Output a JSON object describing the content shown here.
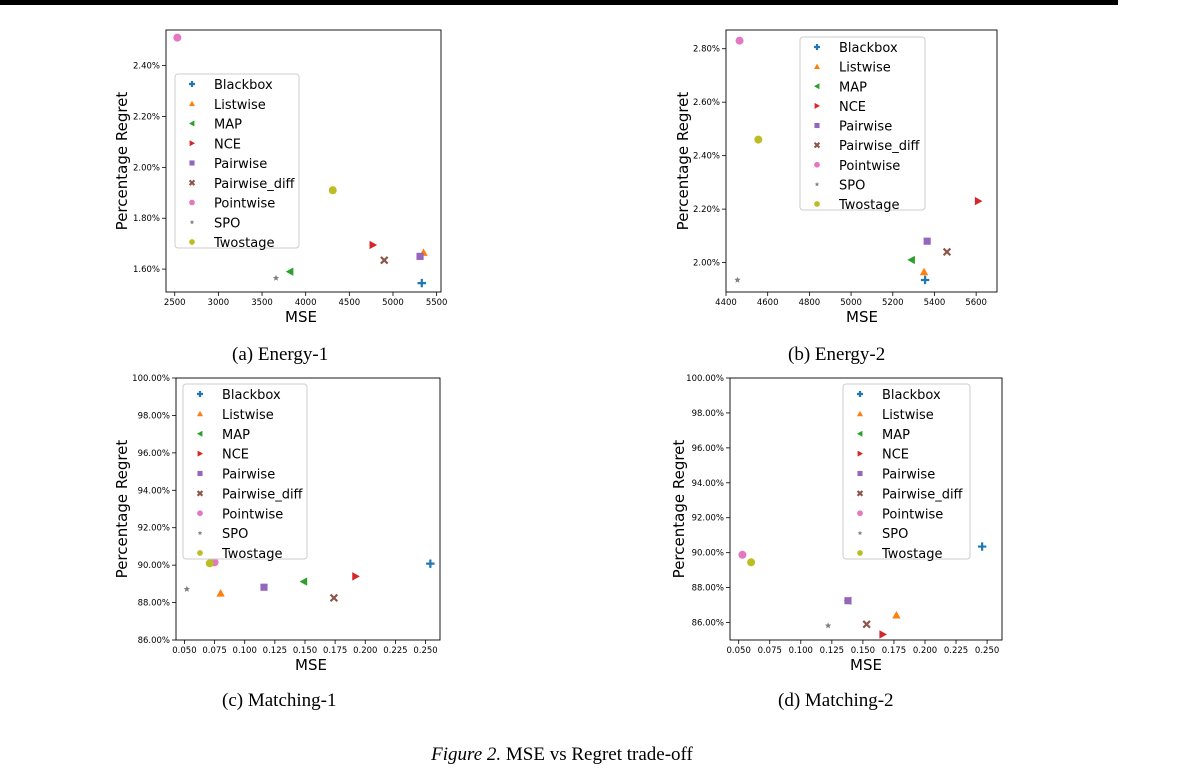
{
  "figure": {
    "label": "Figure 2.",
    "text": "MSE vs Regret trade-off"
  },
  "colors": {
    "Blackbox": "#1f77b4",
    "Listwise": "#ff7f0e",
    "MAP": "#2ca02c",
    "NCE": "#d62728",
    "Pairwise": "#9467bd",
    "Pairwise_diff": "#8c564b",
    "Pointwise": "#e377c2",
    "SPO": "#7f7f7f",
    "Twostage": "#bcbd22"
  },
  "markers": {
    "Blackbox": "plus",
    "Listwise": "triangle-up",
    "MAP": "triangle-left",
    "NCE": "triangle-right",
    "Pairwise": "square",
    "Pairwise_diff": "x",
    "Pointwise": "circle",
    "SPO": "star",
    "Twostage": "circle"
  },
  "chart_data": [
    {
      "type": "scatter",
      "caption": "(a) Energy-1",
      "xlabel": "MSE",
      "ylabel": "Percentage Regret",
      "xlim": [
        2400,
        5550
      ],
      "ylim": [
        1.51,
        2.54
      ],
      "xticks": [
        2500,
        3000,
        3500,
        4000,
        4500,
        5000,
        5500
      ],
      "xtick_labels": [
        "2500",
        "3000",
        "3500",
        "4000",
        "4500",
        "5000",
        "5500"
      ],
      "yticks": [
        1.6,
        1.8,
        2.0,
        2.2,
        2.4
      ],
      "ytick_labels": [
        "1.60%",
        "1.80%",
        "2.00%",
        "2.20%",
        "2.40%"
      ],
      "legend": [
        "Blackbox",
        "Listwise",
        "MAP",
        "NCE",
        "Pairwise",
        "Pairwise_diff",
        "Pointwise",
        "SPO",
        "Twostage"
      ],
      "legend_position": "center-left",
      "points": [
        {
          "name": "Blackbox",
          "x": 5330,
          "y": 1.545
        },
        {
          "name": "Listwise",
          "x": 5350,
          "y": 1.665
        },
        {
          "name": "MAP",
          "x": 3820,
          "y": 1.59
        },
        {
          "name": "NCE",
          "x": 4770,
          "y": 1.695
        },
        {
          "name": "Pairwise",
          "x": 5310,
          "y": 1.65
        },
        {
          "name": "Pairwise_diff",
          "x": 4900,
          "y": 1.635
        },
        {
          "name": "Pointwise",
          "x": 2530,
          "y": 2.51
        },
        {
          "name": "SPO",
          "x": 3660,
          "y": 1.565
        },
        {
          "name": "Twostage",
          "x": 4310,
          "y": 1.91
        }
      ]
    },
    {
      "type": "scatter",
      "caption": "(b) Energy-2",
      "xlabel": "MSE",
      "ylabel": "Percentage Regret",
      "xlim": [
        4400,
        5700
      ],
      "ylim": [
        1.89,
        2.87
      ],
      "xticks": [
        4400,
        4600,
        4800,
        5000,
        5200,
        5400,
        5600
      ],
      "xtick_labels": [
        "4400",
        "4600",
        "4800",
        "5000",
        "5200",
        "5400",
        "5600"
      ],
      "yticks": [
        2.0,
        2.2,
        2.4,
        2.6,
        2.8
      ],
      "ytick_labels": [
        "2.00%",
        "2.20%",
        "2.40%",
        "2.60%",
        "2.80%"
      ],
      "legend": [
        "Blackbox",
        "Listwise",
        "MAP",
        "NCE",
        "Pairwise",
        "Pairwise_diff",
        "Pointwise",
        "SPO",
        "Twostage"
      ],
      "legend_position": "top-center",
      "points": [
        {
          "name": "Blackbox",
          "x": 5355,
          "y": 1.935
        },
        {
          "name": "Listwise",
          "x": 5350,
          "y": 1.965
        },
        {
          "name": "MAP",
          "x": 5290,
          "y": 2.01
        },
        {
          "name": "NCE",
          "x": 5610,
          "y": 2.23
        },
        {
          "name": "Pairwise",
          "x": 5365,
          "y": 2.08
        },
        {
          "name": "Pairwise_diff",
          "x": 5460,
          "y": 2.04
        },
        {
          "name": "Pointwise",
          "x": 4465,
          "y": 2.83
        },
        {
          "name": "SPO",
          "x": 4455,
          "y": 1.935
        },
        {
          "name": "Twostage",
          "x": 4555,
          "y": 2.46
        }
      ]
    },
    {
      "type": "scatter",
      "caption": "(c) Matching-1",
      "xlabel": "MSE",
      "ylabel": "Percentage Regret",
      "xlim": [
        0.043,
        0.262
      ],
      "ylim": [
        86.0,
        100.0
      ],
      "xticks": [
        0.05,
        0.075,
        0.1,
        0.125,
        0.15,
        0.175,
        0.2,
        0.225,
        0.25
      ],
      "xtick_labels": [
        "0.050",
        "0.075",
        "0.100",
        "0.125",
        "0.150",
        "0.175",
        "0.200",
        "0.225",
        "0.250"
      ],
      "yticks": [
        86,
        88,
        90,
        92,
        94,
        96,
        98,
        100
      ],
      "ytick_labels": [
        "86.00%",
        "88.00%",
        "90.00%",
        "92.00%",
        "94.00%",
        "96.00%",
        "98.00%",
        "100.00%"
      ],
      "legend": [
        "Blackbox",
        "Listwise",
        "MAP",
        "NCE",
        "Pairwise",
        "Pairwise_diff",
        "Pointwise",
        "SPO",
        "Twostage"
      ],
      "legend_position": "upper-left",
      "points": [
        {
          "name": "Blackbox",
          "x": 0.254,
          "y": 90.08
        },
        {
          "name": "Listwise",
          "x": 0.08,
          "y": 88.5
        },
        {
          "name": "MAP",
          "x": 0.149,
          "y": 89.12
        },
        {
          "name": "NCE",
          "x": 0.192,
          "y": 89.4
        },
        {
          "name": "Pairwise",
          "x": 0.116,
          "y": 88.82
        },
        {
          "name": "Pairwise_diff",
          "x": 0.174,
          "y": 88.25
        },
        {
          "name": "Pointwise",
          "x": 0.075,
          "y": 90.15
        },
        {
          "name": "SPO",
          "x": 0.052,
          "y": 88.72
        },
        {
          "name": "Twostage",
          "x": 0.071,
          "y": 90.1
        }
      ]
    },
    {
      "type": "scatter",
      "caption": "(d) Matching-2",
      "xlabel": "MSE",
      "ylabel": "Percentage Regret",
      "xlim": [
        0.043,
        0.262
      ],
      "ylim": [
        85.0,
        100.0
      ],
      "xticks": [
        0.05,
        0.075,
        0.1,
        0.125,
        0.15,
        0.175,
        0.2,
        0.225,
        0.25
      ],
      "xtick_labels": [
        "0.050",
        "0.075",
        "0.100",
        "0.125",
        "0.150",
        "0.175",
        "0.200",
        "0.225",
        "0.250"
      ],
      "yticks": [
        86,
        88,
        90,
        92,
        94,
        96,
        98,
        100
      ],
      "ytick_labels": [
        "86.00%",
        "88.00%",
        "90.00%",
        "92.00%",
        "94.00%",
        "96.00%",
        "98.00%",
        "100.00%"
      ],
      "legend": [
        "Blackbox",
        "Listwise",
        "MAP",
        "NCE",
        "Pairwise",
        "Pairwise_diff",
        "Pointwise",
        "SPO",
        "Twostage"
      ],
      "legend_position": "top-right",
      "points": [
        {
          "name": "Blackbox",
          "x": 0.246,
          "y": 90.35
        },
        {
          "name": "Listwise",
          "x": 0.177,
          "y": 86.42
        },
        {
          "name": "MAP",
          "x": 0.138,
          "y": 87.25
        },
        {
          "name": "NCE",
          "x": 0.166,
          "y": 85.32
        },
        {
          "name": "Pairwise",
          "x": 0.138,
          "y": 87.25
        },
        {
          "name": "Pairwise_diff",
          "x": 0.153,
          "y": 85.9
        },
        {
          "name": "Pointwise",
          "x": 0.053,
          "y": 89.88
        },
        {
          "name": "SPO",
          "x": 0.122,
          "y": 85.82
        },
        {
          "name": "Twostage",
          "x": 0.06,
          "y": 89.45
        }
      ]
    }
  ]
}
